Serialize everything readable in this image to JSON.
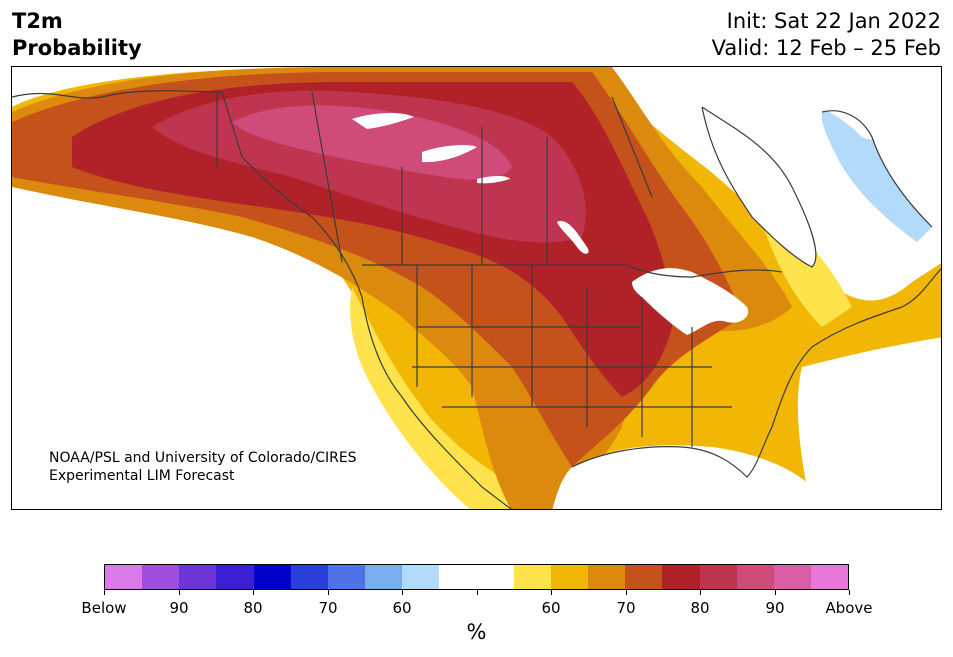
{
  "header": {
    "title_line1": "T2m",
    "title_line2": "Probability",
    "init": "Init: Sat 22 Jan 2022",
    "valid": "Valid: 12 Feb – 25 Feb"
  },
  "credit": {
    "line1": "NOAA/PSL and University of Colorado/CIRES",
    "line2": "Experimental LIM Forecast"
  },
  "legend": {
    "unit": "%",
    "colors": [
      "#d97ae8",
      "#9f4fe0",
      "#6e35d6",
      "#3a1fd4",
      "#0000cc",
      "#2a3fd9",
      "#4f73e6",
      "#78aef0",
      "#b2dbfb",
      "#ffffff",
      "#ffffff",
      "#ffe34d",
      "#f2b705",
      "#dc8a0e",
      "#c4521a",
      "#b02228",
      "#bf3550",
      "#cf4b79",
      "#d95ea6",
      "#e877d8"
    ],
    "labels": [
      "Below",
      "90",
      "80",
      "70",
      "60",
      "",
      "60",
      "70",
      "80",
      "90",
      "Above"
    ]
  },
  "map": {
    "region": "North America",
    "colors": {
      "p50": "#ffe34d",
      "p60": "#f2b705",
      "p65": "#dc8a0e",
      "p70": "#c4521a",
      "p80": "#b02228",
      "p85": "#bf3550",
      "p90": "#cf4b79",
      "below60": "#b2dbfb",
      "outline": "#3b3b3b"
    }
  }
}
